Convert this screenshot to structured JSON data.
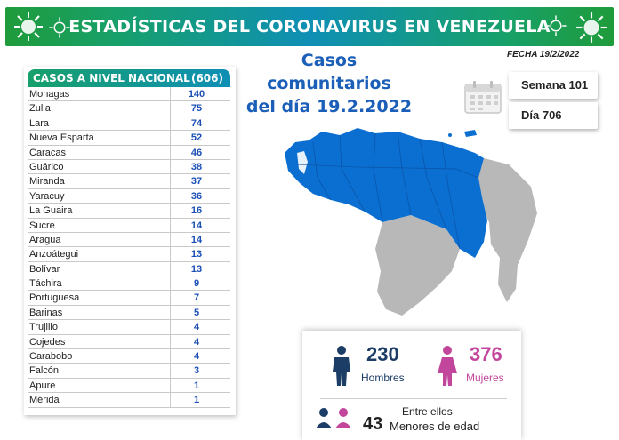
{
  "header": {
    "title": "ESTADÍSTICAS DEL CORONAVIRUS EN VENEZUELA"
  },
  "panel": {
    "heading": "CASOS A NIVEL NACIONAL",
    "total": "(606)",
    "rows": [
      {
        "state": "Monagas",
        "cases": "140"
      },
      {
        "state": "Zulia",
        "cases": "75"
      },
      {
        "state": "Lara",
        "cases": "74"
      },
      {
        "state": "Nueva Esparta",
        "cases": "52"
      },
      {
        "state": "Caracas",
        "cases": "46"
      },
      {
        "state": "Guárico",
        "cases": "38"
      },
      {
        "state": "Miranda",
        "cases": "37"
      },
      {
        "state": "Yaracuy",
        "cases": "36"
      },
      {
        "state": "La Guaira",
        "cases": "16"
      },
      {
        "state": "Sucre",
        "cases": "14"
      },
      {
        "state": "Aragua",
        "cases": "14"
      },
      {
        "state": "Anzoátegui",
        "cases": "13"
      },
      {
        "state": "Bolívar",
        "cases": "13"
      },
      {
        "state": "Táchira",
        "cases": "9"
      },
      {
        "state": "Portuguesa",
        "cases": "7"
      },
      {
        "state": "Barinas",
        "cases": "5"
      },
      {
        "state": "Trujillo",
        "cases": "4"
      },
      {
        "state": "Cojedes",
        "cases": "4"
      },
      {
        "state": "Carabobo",
        "cases": "4"
      },
      {
        "state": "Falcón",
        "cases": "3"
      },
      {
        "state": "Apure",
        "cases": "1"
      },
      {
        "state": "Mérida",
        "cases": "1"
      }
    ]
  },
  "title": {
    "line1": "Casos comunitarios",
    "line2": "del día 19.2.2022"
  },
  "fecha": "FECHA 19/2/2022",
  "boxes": {
    "semana": "Semana 101",
    "dia": "Día 706"
  },
  "stats": {
    "men_count": "230",
    "men_label": "Hombres",
    "women_count": "376",
    "women_label": "Mujeres",
    "minors_intro": "Entre ellos",
    "minors_count": "43",
    "minors_label": "Menores de edad"
  },
  "colors": {
    "accent_blue": "#1b5fb8",
    "map_blue": "#0b6fd1",
    "map_gray": "#b8b8b8",
    "men_color": "#1c3d66",
    "women_color": "#c2479c"
  }
}
